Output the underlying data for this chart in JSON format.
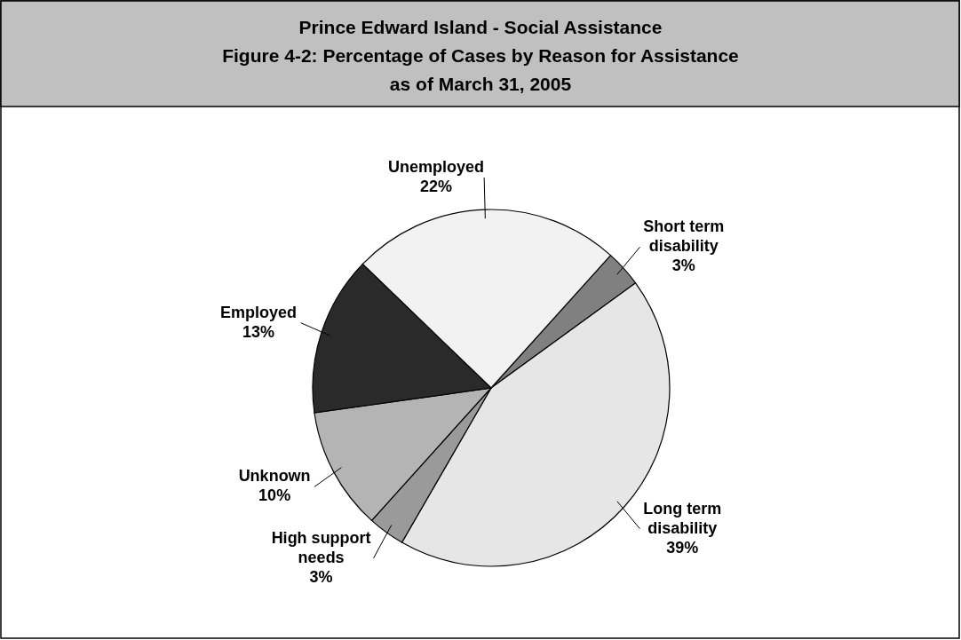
{
  "chart_data": {
    "type": "pie",
    "title": "Prince Edward Island - Social Assistance",
    "subtitle": "Figure 4-2: Percentage of Cases by Reason for Assistance\nas of March 31, 2005",
    "categories": [
      "Short term disability",
      "Long term disability",
      "High support needs",
      "Unknown",
      "Employed",
      "Unemployed"
    ],
    "values": [
      3,
      39,
      3,
      10,
      13,
      22
    ],
    "value_labels": [
      "3%",
      "39%",
      "3%",
      "10%",
      "13%",
      "22%"
    ],
    "colors": [
      "#808080",
      "#e6e6e6",
      "#9a9a9a",
      "#b4b4b4",
      "#2a2a2a",
      "#f2f2f2"
    ]
  }
}
